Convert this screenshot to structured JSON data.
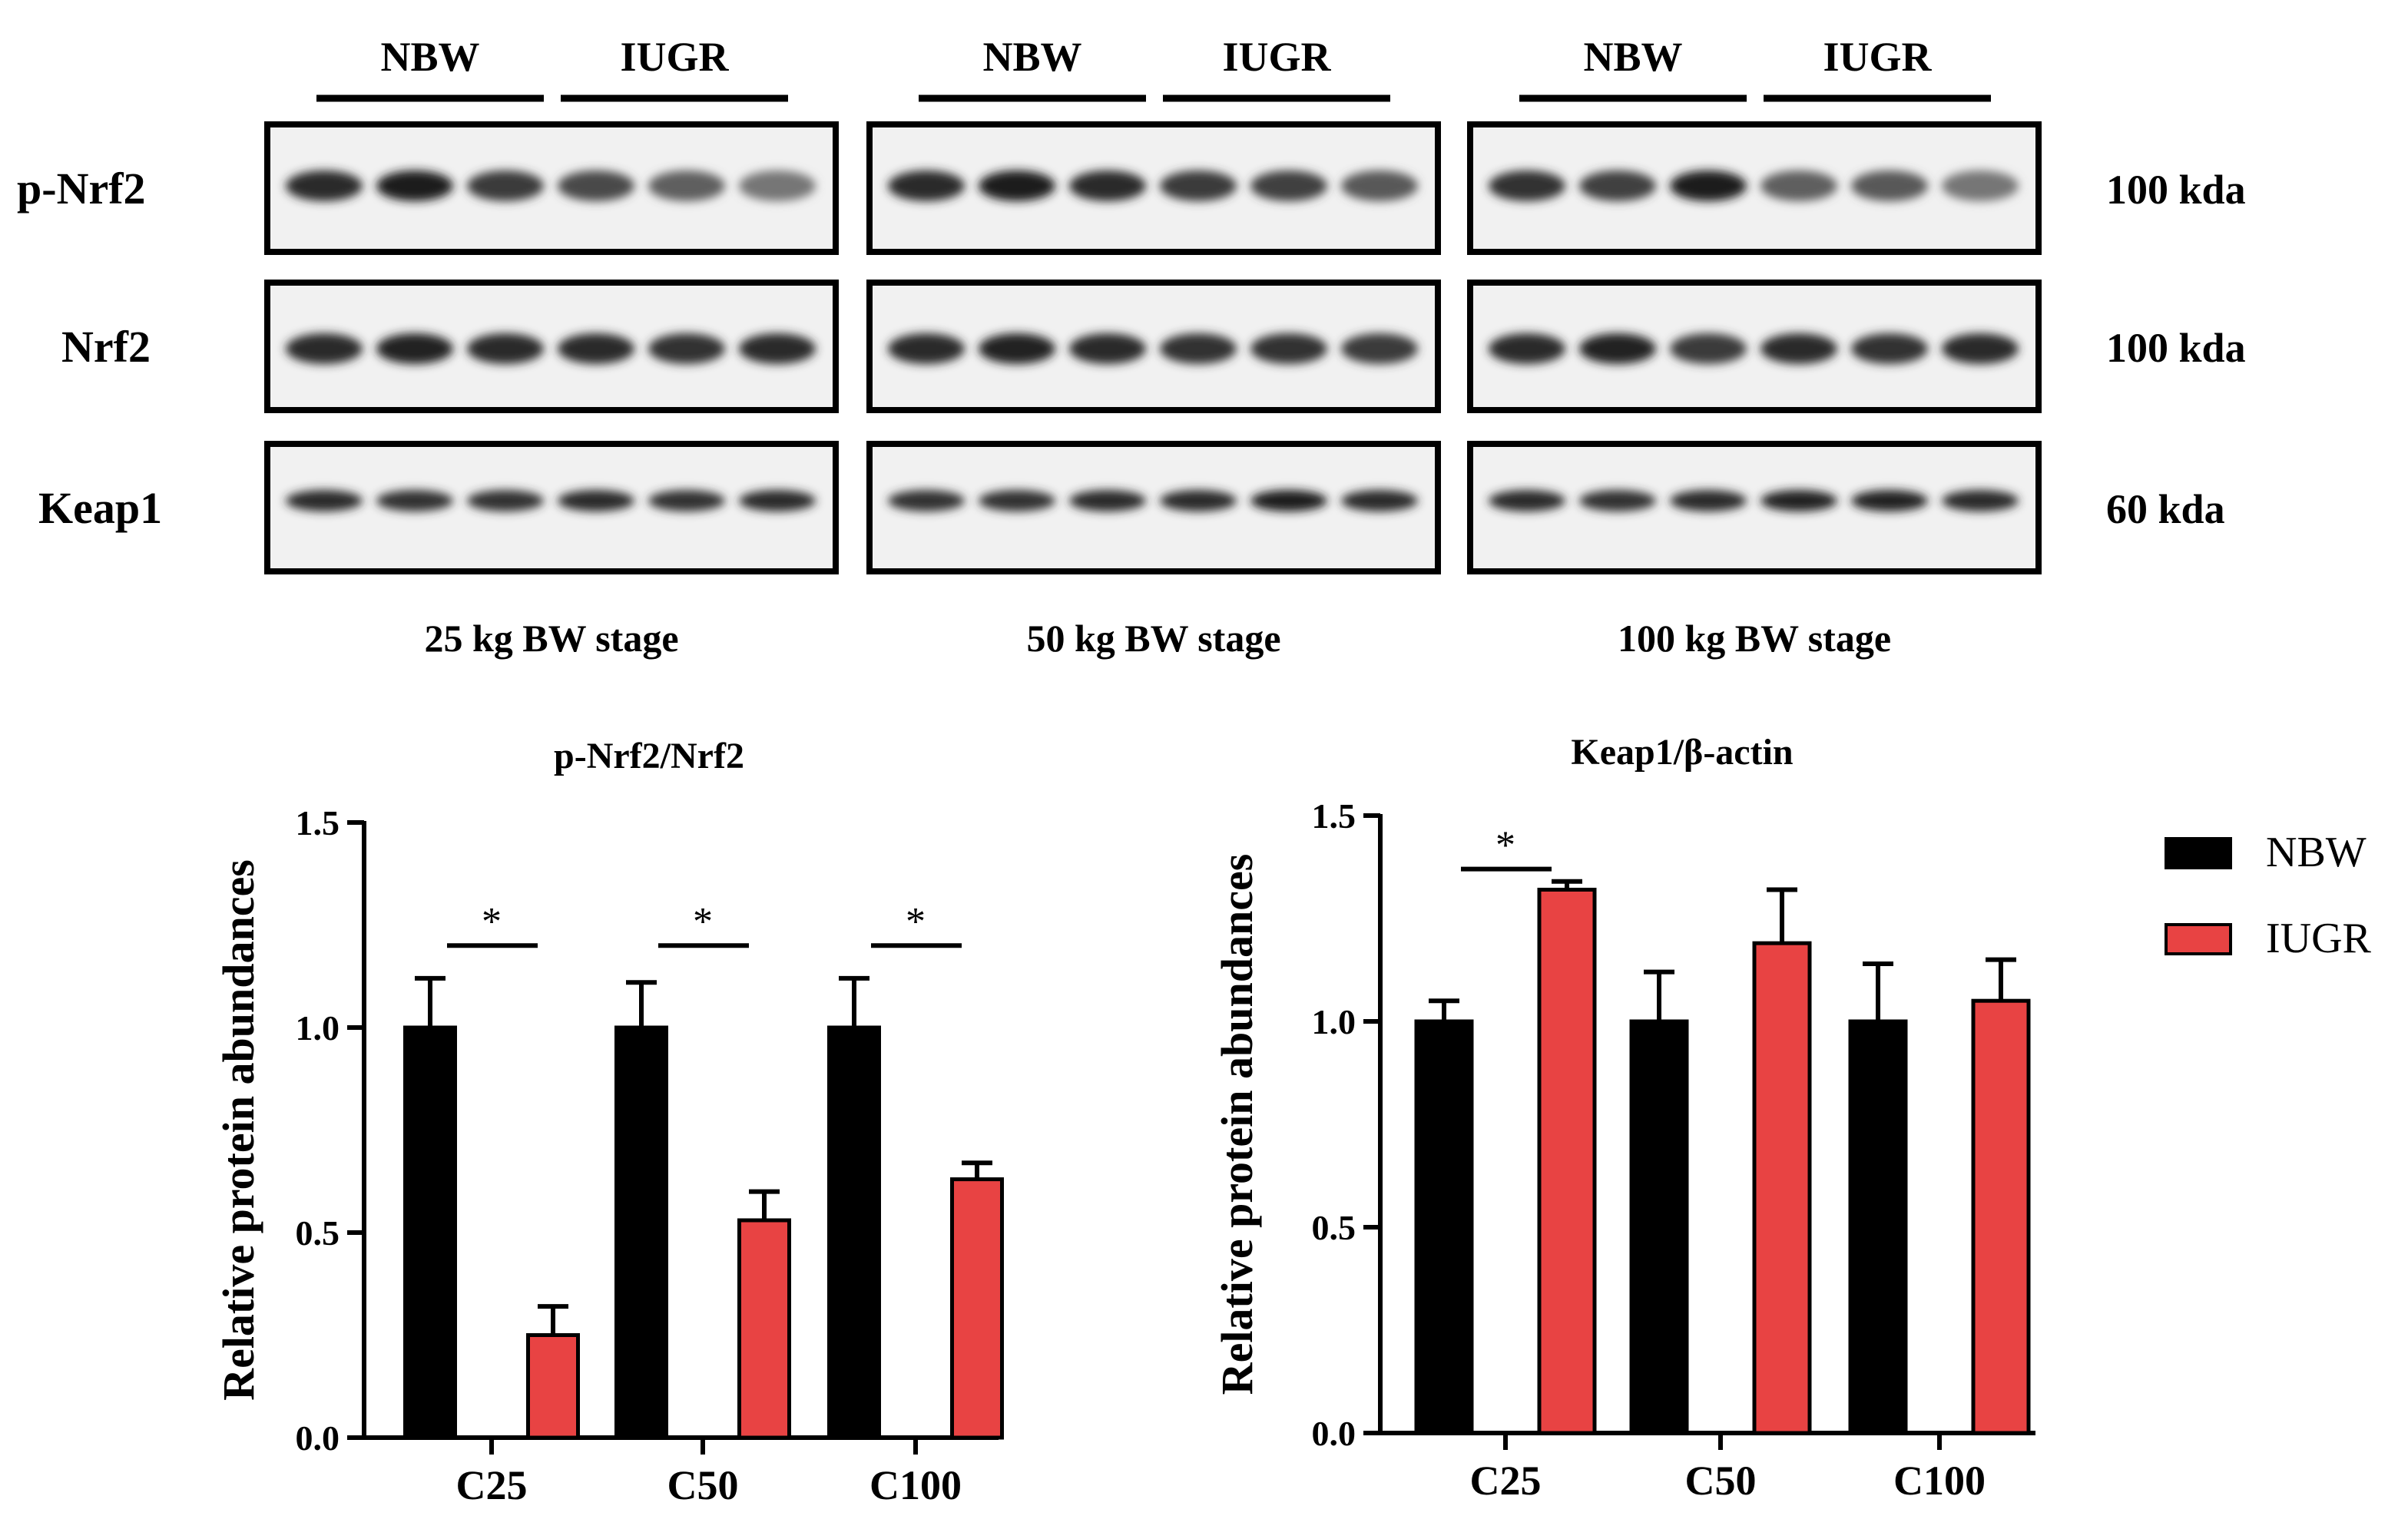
{
  "blot": {
    "panels": [
      {
        "stage": "25 kg BW stage",
        "group_labels": [
          "NBW",
          "IUGR"
        ]
      },
      {
        "stage": "50 kg BW stage",
        "group_labels": [
          "NBW",
          "IUGR"
        ]
      },
      {
        "stage": "100 kg BW stage",
        "group_labels": [
          "NBW",
          "IUGR"
        ]
      }
    ],
    "rows": [
      {
        "protein": "p-Nrf2",
        "size": "100 kda",
        "intensity": [
          [
            0.85,
            0.95,
            0.75,
            0.65,
            0.5,
            0.35
          ],
          [
            0.85,
            0.95,
            0.85,
            0.75,
            0.7,
            0.55
          ],
          [
            0.8,
            0.7,
            0.95,
            0.5,
            0.55,
            0.35
          ]
        ]
      },
      {
        "protein": "Nrf2",
        "size": "100 kda",
        "intensity": [
          [
            0.85,
            0.9,
            0.85,
            0.85,
            0.8,
            0.85
          ],
          [
            0.85,
            0.9,
            0.85,
            0.8,
            0.8,
            0.75
          ],
          [
            0.85,
            0.9,
            0.75,
            0.85,
            0.8,
            0.85
          ]
        ]
      },
      {
        "protein": "Keap1",
        "size": "60 kda",
        "intensity": [
          [
            0.85,
            0.8,
            0.8,
            0.85,
            0.8,
            0.85
          ],
          [
            0.8,
            0.8,
            0.85,
            0.85,
            0.95,
            0.85
          ],
          [
            0.85,
            0.8,
            0.85,
            0.9,
            0.9,
            0.85
          ]
        ]
      }
    ]
  },
  "chart_data": [
    {
      "type": "bar",
      "title": "p-Nrf2/Nrf2",
      "ylabel": "Relative protein abundances",
      "categories": [
        "C25",
        "C50",
        "C100"
      ],
      "ylim": [
        0,
        1.5
      ],
      "yticks": [
        "0.0",
        "0.5",
        "1.0",
        "1.5"
      ],
      "series": [
        {
          "name": "NBW",
          "color": "#000000",
          "values": [
            1.0,
            1.0,
            1.0
          ],
          "errors": [
            0.12,
            0.11,
            0.12
          ]
        },
        {
          "name": "IUGR",
          "color": "#e84343",
          "values": [
            0.25,
            0.53,
            0.63
          ],
          "errors": [
            0.07,
            0.07,
            0.04
          ]
        }
      ],
      "significance": [
        {
          "category": "C25",
          "label": "*",
          "y": 1.2
        },
        {
          "category": "C50",
          "label": "*",
          "y": 1.2
        },
        {
          "category": "C100",
          "label": "*",
          "y": 1.2
        }
      ]
    },
    {
      "type": "bar",
      "title": "Keap1/β-actin",
      "ylabel": "Relative protein abundances",
      "categories": [
        "C25",
        "C50",
        "C100"
      ],
      "ylim": [
        0,
        1.5
      ],
      "yticks": [
        "0.0",
        "0.5",
        "1.0",
        "1.5"
      ],
      "series": [
        {
          "name": "NBW",
          "color": "#000000",
          "values": [
            1.0,
            1.0,
            1.0
          ],
          "errors": [
            0.05,
            0.12,
            0.14
          ]
        },
        {
          "name": "IUGR",
          "color": "#e84343",
          "values": [
            1.32,
            1.19,
            1.05
          ],
          "errors": [
            0.02,
            0.13,
            0.1
          ]
        }
      ],
      "significance": [
        {
          "category": "C25",
          "label": "*",
          "y": 1.37
        }
      ]
    }
  ],
  "legend": {
    "placement": "right",
    "items": [
      {
        "label": "NBW",
        "color": "#000000"
      },
      {
        "label": "IUGR",
        "color": "#e84343"
      }
    ]
  }
}
